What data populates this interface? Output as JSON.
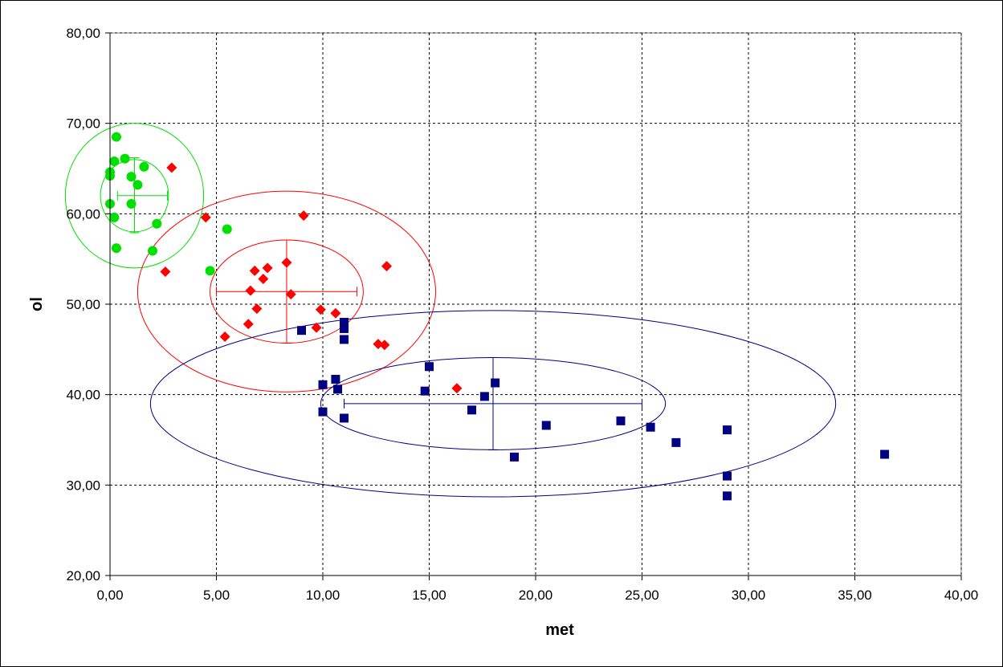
{
  "chart_data": {
    "type": "scatter",
    "xlabel": "met",
    "ylabel": "ol",
    "xlim": [
      0,
      40
    ],
    "ylim": [
      20,
      80
    ],
    "x_ticks": [
      "0,00",
      "5,00",
      "10,00",
      "15,00",
      "20,00",
      "25,00",
      "30,00",
      "35,00",
      "40,00"
    ],
    "y_ticks": [
      "20,00",
      "30,00",
      "40,00",
      "50,00",
      "60,00",
      "70,00",
      "80,00"
    ],
    "x_tick_values": [
      0,
      5,
      10,
      15,
      20,
      25,
      30,
      35,
      40
    ],
    "y_tick_values": [
      20,
      30,
      40,
      50,
      60,
      70,
      80
    ],
    "grid": true,
    "grid_style": "dashed",
    "plot_area_border": "#808080",
    "series": [
      {
        "marker": "circle",
        "color": "#00E000",
        "points": [
          [
            0.3,
            68.5
          ],
          [
            0.2,
            65.8
          ],
          [
            0.7,
            66.1
          ],
          [
            1.6,
            65.2
          ],
          [
            0.0,
            64.6
          ],
          [
            0.0,
            64.2
          ],
          [
            1.0,
            64.1
          ],
          [
            1.3,
            63.2
          ],
          [
            0.0,
            61.1
          ],
          [
            1.0,
            61.1
          ],
          [
            0.2,
            59.6
          ],
          [
            2.2,
            58.9
          ],
          [
            5.5,
            58.3
          ],
          [
            0.3,
            56.2
          ],
          [
            2.0,
            55.9
          ],
          [
            4.7,
            53.7
          ]
        ],
        "centroid": [
          1.15,
          62.0
        ],
        "error_bars": {
          "x": [
            0.35,
            2.7
          ],
          "y": [
            57.9,
            66.2
          ]
        },
        "ellipses": [
          {
            "cx": 1.15,
            "cy": 62.0,
            "rx": 1.6,
            "ry": 4.0
          },
          {
            "cx": 1.15,
            "cy": 62.0,
            "rx": 3.25,
            "ry": 8.0
          }
        ]
      },
      {
        "marker": "diamond",
        "color": "#FF0000",
        "points": [
          [
            2.9,
            65.1
          ],
          [
            9.1,
            59.8
          ],
          [
            4.5,
            59.6
          ],
          [
            8.3,
            54.6
          ],
          [
            13.0,
            54.2
          ],
          [
            7.4,
            54.0
          ],
          [
            6.8,
            53.7
          ],
          [
            2.6,
            53.6
          ],
          [
            7.2,
            52.8
          ],
          [
            6.6,
            51.5
          ],
          [
            8.5,
            51.1
          ],
          [
            6.9,
            49.5
          ],
          [
            9.9,
            49.4
          ],
          [
            10.6,
            49.0
          ],
          [
            6.5,
            47.8
          ],
          [
            9.7,
            47.4
          ],
          [
            5.4,
            46.4
          ],
          [
            12.6,
            45.6
          ],
          [
            12.9,
            45.5
          ],
          [
            16.3,
            40.7
          ]
        ],
        "centroid": [
          8.3,
          51.4
        ],
        "error_bars": {
          "x": [
            5.0,
            11.6
          ],
          "y": [
            45.7,
            57.1
          ]
        },
        "ellipses": [
          {
            "cx": 8.3,
            "cy": 51.4,
            "rx": 3.6,
            "ry": 5.7
          },
          {
            "cx": 8.3,
            "cy": 51.4,
            "rx": 7.0,
            "ry": 11.1
          }
        ]
      },
      {
        "marker": "square",
        "color": "#000080",
        "points": [
          [
            9.0,
            47.1
          ],
          [
            11.0,
            48.0
          ],
          [
            11.0,
            47.3
          ],
          [
            11.0,
            46.1
          ],
          [
            15.0,
            43.1
          ],
          [
            10.6,
            41.7
          ],
          [
            18.1,
            41.3
          ],
          [
            10.0,
            41.1
          ],
          [
            10.7,
            40.6
          ],
          [
            14.8,
            40.4
          ],
          [
            17.6,
            39.8
          ],
          [
            17.0,
            38.3
          ],
          [
            10.0,
            38.1
          ],
          [
            11.0,
            37.4
          ],
          [
            24.0,
            37.1
          ],
          [
            20.5,
            36.6
          ],
          [
            25.4,
            36.4
          ],
          [
            29.0,
            36.1
          ],
          [
            26.6,
            34.7
          ],
          [
            36.4,
            33.4
          ],
          [
            19.0,
            33.1
          ],
          [
            29.0,
            31.0
          ],
          [
            29.0,
            28.8
          ]
        ],
        "centroid": [
          18.0,
          39.0
        ],
        "error_bars": {
          "x": [
            11.0,
            25.0
          ],
          "y": [
            33.9,
            44.1
          ]
        },
        "ellipses": [
          {
            "cx": 18.0,
            "cy": 39.0,
            "rx": 8.1,
            "ry": 5.1
          },
          {
            "cx": 18.0,
            "cy": 39.0,
            "rx": 16.1,
            "ry": 10.3
          }
        ]
      }
    ]
  }
}
